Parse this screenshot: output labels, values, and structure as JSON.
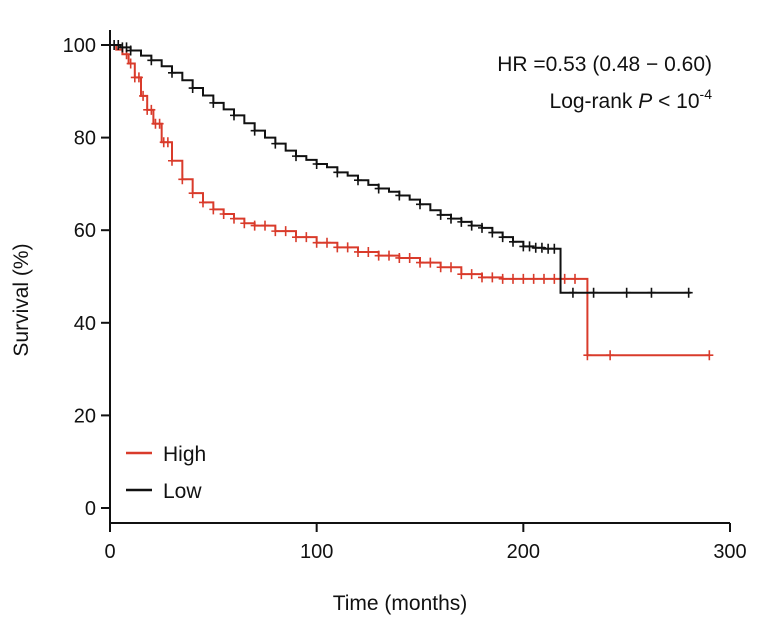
{
  "chart_data": {
    "type": "line",
    "subtype": "kaplan-meier",
    "xlabel": "Time (months)",
    "ylabel": "Survival (%)",
    "xlim": [
      0,
      300
    ],
    "ylim": [
      0,
      100
    ],
    "x_ticks": [
      0,
      100,
      200,
      300
    ],
    "y_ticks": [
      0,
      20,
      40,
      60,
      80,
      100
    ],
    "grid": false,
    "legend_position": "bottom-left",
    "annotations": {
      "hr": "HR =0.53 (0.48 − 0.60)",
      "logrank_prefix": "Log-rank ",
      "logrank_p": "P",
      "logrank_mid": " < 10",
      "logrank_exp": "-4"
    },
    "series": [
      {
        "name": "High",
        "color": "#d93b2b",
        "points": [
          [
            0,
            100
          ],
          [
            3,
            99
          ],
          [
            6,
            98
          ],
          [
            9,
            96
          ],
          [
            12,
            93
          ],
          [
            15,
            89
          ],
          [
            18,
            86
          ],
          [
            21,
            83
          ],
          [
            25,
            79
          ],
          [
            30,
            75
          ],
          [
            35,
            71
          ],
          [
            40,
            68
          ],
          [
            45,
            66
          ],
          [
            50,
            64.5
          ],
          [
            55,
            63.5
          ],
          [
            60,
            62.5
          ],
          [
            65,
            61.5
          ],
          [
            70,
            61
          ],
          [
            80,
            59.8
          ],
          [
            90,
            58.5
          ],
          [
            100,
            57.3
          ],
          [
            110,
            56.3
          ],
          [
            120,
            55.3
          ],
          [
            130,
            54.5
          ],
          [
            140,
            54
          ],
          [
            150,
            53
          ],
          [
            160,
            52
          ],
          [
            170,
            50.5
          ],
          [
            180,
            49.8
          ],
          [
            190,
            49.5
          ],
          [
            200,
            49.5
          ],
          [
            210,
            49.5
          ],
          [
            220,
            49.5
          ],
          [
            231,
            49.5
          ],
          [
            231,
            33
          ],
          [
            240,
            33
          ],
          [
            250,
            33
          ],
          [
            260,
            33
          ],
          [
            270,
            33
          ],
          [
            290,
            33
          ]
        ],
        "censor_x": [
          8,
          10,
          12,
          14,
          16,
          18,
          20,
          22,
          24,
          26,
          28,
          30,
          35,
          40,
          45,
          50,
          55,
          60,
          65,
          70,
          75,
          80,
          85,
          90,
          95,
          100,
          105,
          110,
          115,
          120,
          125,
          130,
          135,
          140,
          145,
          150,
          155,
          160,
          165,
          170,
          175,
          180,
          185,
          190,
          195,
          200,
          205,
          210,
          215,
          220,
          225,
          231,
          242,
          290
        ]
      },
      {
        "name": "Low",
        "color": "#111111",
        "points": [
          [
            0,
            100
          ],
          [
            5,
            99.5
          ],
          [
            10,
            98.8
          ],
          [
            15,
            97.7
          ],
          [
            20,
            96.7
          ],
          [
            25,
            95.4
          ],
          [
            30,
            94
          ],
          [
            35,
            92.4
          ],
          [
            40,
            90.7
          ],
          [
            45,
            89.1
          ],
          [
            50,
            87.5
          ],
          [
            55,
            86.1
          ],
          [
            60,
            84.8
          ],
          [
            65,
            83.1
          ],
          [
            70,
            81.5
          ],
          [
            75,
            80
          ],
          [
            80,
            78.7
          ],
          [
            85,
            77.2
          ],
          [
            90,
            76
          ],
          [
            95,
            75.2
          ],
          [
            100,
            74.3
          ],
          [
            105,
            73.6
          ],
          [
            110,
            72.5
          ],
          [
            115,
            71.8
          ],
          [
            120,
            70.8
          ],
          [
            125,
            69.8
          ],
          [
            130,
            69
          ],
          [
            135,
            68.3
          ],
          [
            140,
            67.5
          ],
          [
            145,
            66.6
          ],
          [
            150,
            65.6
          ],
          [
            155,
            64.3
          ],
          [
            160,
            63.3
          ],
          [
            165,
            62.5
          ],
          [
            170,
            61.8
          ],
          [
            175,
            61
          ],
          [
            180,
            60.5
          ],
          [
            185,
            59.5
          ],
          [
            190,
            58.5
          ],
          [
            195,
            57.5
          ],
          [
            200,
            56.5
          ],
          [
            205,
            56.2
          ],
          [
            210,
            56
          ],
          [
            218,
            56
          ],
          [
            218,
            46.5
          ],
          [
            230,
            46.5
          ],
          [
            281,
            46.5
          ]
        ],
        "censor_x": [
          2,
          4,
          6,
          8,
          10,
          20,
          30,
          40,
          50,
          60,
          70,
          80,
          90,
          100,
          110,
          120,
          130,
          140,
          150,
          160,
          165,
          170,
          175,
          180,
          185,
          190,
          195,
          200,
          203,
          206,
          209,
          212,
          215,
          224,
          234,
          250,
          262,
          280
        ]
      }
    ]
  }
}
